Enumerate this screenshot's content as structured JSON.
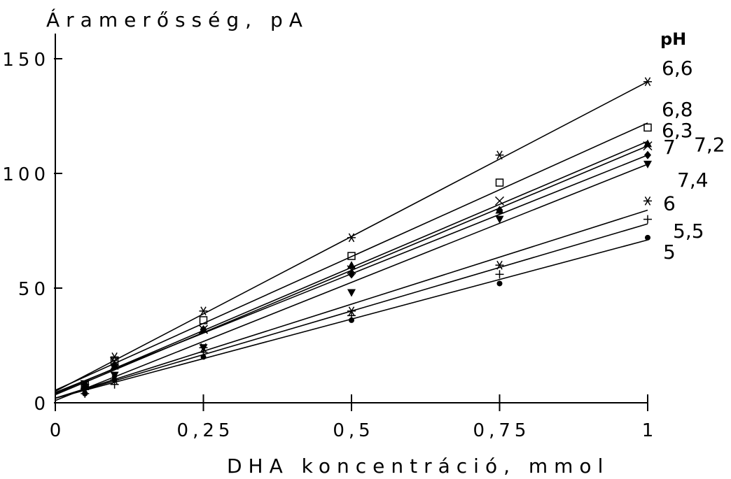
{
  "chart_data": {
    "type": "scatter",
    "title": "",
    "ylabel": "Áramerősség, pA",
    "xlabel": "DHA koncentráció, mmol",
    "legend_title": "pH",
    "xlim": [
      0,
      1
    ],
    "ylim": [
      0,
      150
    ],
    "x_ticks": [
      0,
      0.25,
      0.5,
      0.75,
      1
    ],
    "x_tick_labels": [
      "0",
      "0,25",
      "0,5",
      "0,75",
      "1"
    ],
    "y_ticks": [
      0,
      50,
      100,
      150
    ],
    "y_tick_labels": [
      "0",
      "50",
      "100",
      "150"
    ],
    "grid": false,
    "legend_position": "right",
    "x": [
      0.05,
      0.1,
      0.25,
      0.5,
      0.75,
      1
    ],
    "series": [
      {
        "name": "6,6",
        "marker": "asterisk",
        "values": [
          8,
          20,
          40,
          72,
          108,
          140
        ],
        "fit": [
          5,
          140
        ]
      },
      {
        "name": "6,8",
        "marker": "square",
        "values": [
          8,
          18,
          36,
          64,
          96,
          120
        ],
        "fit": [
          5.5,
          122
        ]
      },
      {
        "name": "6,3",
        "marker": "x",
        "values": [
          8,
          18,
          32,
          58,
          88,
          112
        ],
        "fit": [
          4,
          114
        ]
      },
      {
        "name": "7,2",
        "marker": "triangle",
        "values": [
          7,
          16,
          32,
          60,
          84,
          113
        ],
        "fit": [
          3.5,
          112
        ]
      },
      {
        "name": "7",
        "marker": "diamond",
        "values": [
          8,
          16,
          32,
          56,
          84,
          108
        ],
        "fit": [
          4.5,
          108
        ]
      },
      {
        "name": "7,4",
        "marker": "triangle-down",
        "values": [
          6,
          12,
          24,
          48,
          80,
          104
        ],
        "fit": [
          1,
          104
        ]
      },
      {
        "name": "6",
        "marker": "asterisk",
        "values": [
          6,
          10,
          24,
          40,
          60,
          88
        ],
        "fit": [
          2,
          84
        ]
      },
      {
        "name": "5,5",
        "marker": "plus",
        "values": [
          4,
          8,
          22,
          38,
          56,
          80
        ],
        "fit": [
          2,
          78
        ]
      },
      {
        "name": "5",
        "marker": "dot",
        "values": [
          4,
          10,
          20,
          36,
          52,
          72
        ],
        "fit": [
          2,
          71
        ]
      }
    ]
  }
}
